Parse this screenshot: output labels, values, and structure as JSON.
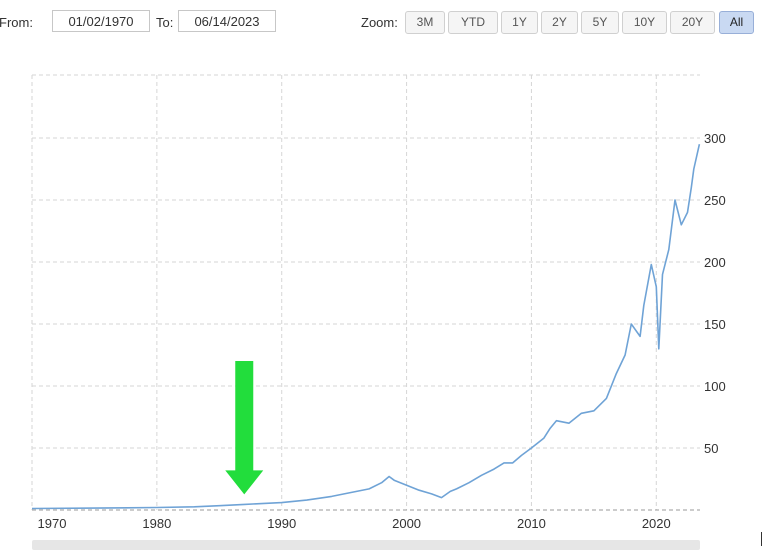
{
  "date_range": {
    "from_label": "From:",
    "from_value": "01/02/1970",
    "to_label": "To:",
    "to_value": "06/14/2023"
  },
  "zoom": {
    "label": "Zoom:",
    "options": [
      "3M",
      "YTD",
      "1Y",
      "2Y",
      "5Y",
      "10Y",
      "20Y",
      "All"
    ],
    "selected": "All"
  },
  "colors": {
    "series": "#6fa3d6",
    "arrow": "#22dd3c",
    "grid": "#d6d6d6"
  },
  "chart_data": {
    "type": "line",
    "title": "",
    "xlabel": "",
    "ylabel": "",
    "xlim": [
      1970.0,
      2023.5
    ],
    "ylim": [
      0,
      300
    ],
    "x_ticks": [
      1970,
      1980,
      1990,
      2000,
      2010,
      2020
    ],
    "y_ticks": [
      50,
      100,
      150,
      200,
      250,
      300
    ],
    "grid": true,
    "y_axis_side": "right",
    "series": [
      {
        "x": [
          1970,
          1975,
          1980,
          1983,
          1985,
          1987,
          1988,
          1990,
          1992,
          1994,
          1995,
          1996,
          1997,
          1998,
          1998.6,
          1999,
          2000,
          2001,
          2002,
          2002.8,
          2003.5,
          2004,
          2005,
          2006,
          2007,
          2007.8,
          2008.5,
          2009.2,
          2010,
          2011,
          2011.5,
          2012,
          2013,
          2014,
          2015,
          2016,
          2016.8,
          2017.5,
          2018,
          2018.7,
          2019,
          2019.6,
          2020.0,
          2020.2,
          2020.5,
          2021,
          2021.5,
          2022,
          2022.5,
          2022.8,
          2023,
          2023.45
        ],
        "y": [
          1.2,
          1.5,
          2.0,
          2.6,
          3.5,
          4.5,
          5.0,
          6.0,
          8.0,
          11,
          13,
          15,
          17,
          22,
          27,
          24,
          20,
          16,
          13,
          10,
          15,
          17,
          22,
          28,
          33,
          38,
          38,
          44,
          50,
          58,
          66,
          72,
          70,
          78,
          80,
          90,
          110,
          125,
          150,
          140,
          165,
          198,
          180,
          130,
          190,
          210,
          250,
          230,
          240,
          260,
          275,
          295
        ]
      }
    ],
    "annotations": [
      {
        "type": "arrow",
        "direction": "down",
        "x": 1987,
        "y": 4.5
      }
    ]
  }
}
